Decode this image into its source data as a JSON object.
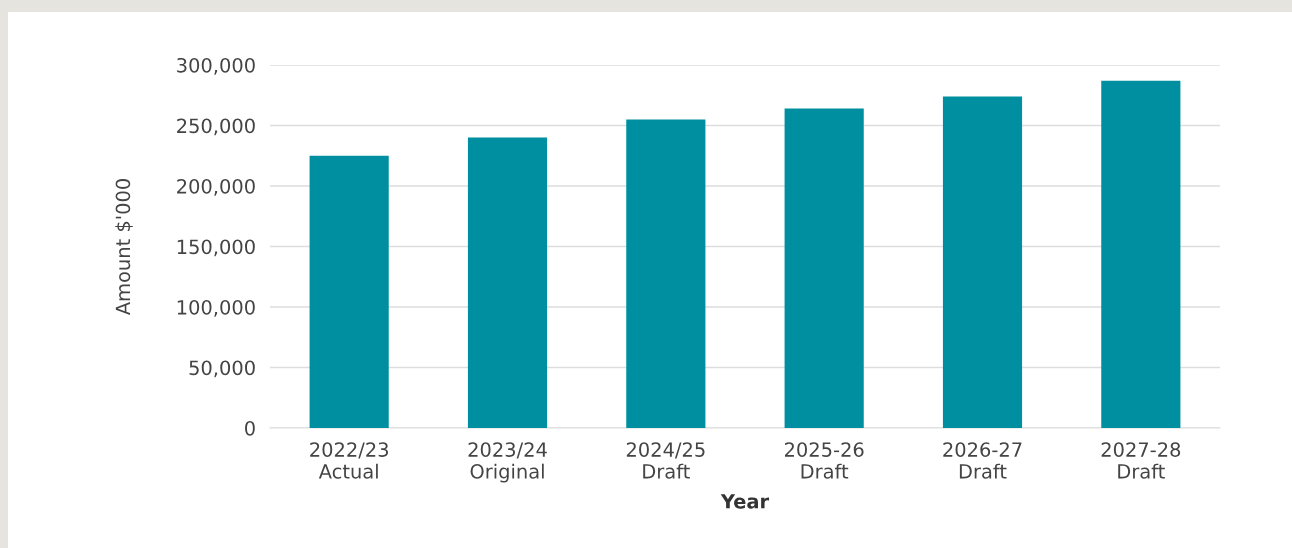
{
  "chart_data": {
    "type": "bar",
    "xlabel": "Year",
    "ylabel": "Amount $'000",
    "categories": [
      "2022/23\nActual",
      "2023/24\nOriginal",
      "2024/25\nDraft",
      "2025-26\nDraft",
      "2026-27\nDraft",
      "2027-28\nDraft"
    ],
    "values": [
      225000,
      240000,
      255000,
      264000,
      274000,
      287000
    ],
    "color": "#008fa0",
    "ylim": [
      0,
      300000
    ],
    "yticks": [
      0,
      {
        "value": 50000,
        "label": "50,000"
      },
      {
        "value": 100000,
        "label": "100,000"
      },
      {
        "value": 150000,
        "label": "150,000"
      },
      {
        "value": 200000,
        "label": "200,000"
      },
      {
        "value": 250000,
        "label": "250,000"
      },
      {
        "value": 300000,
        "label": "300,000"
      }
    ],
    "grid": "y",
    "legend": false
  }
}
